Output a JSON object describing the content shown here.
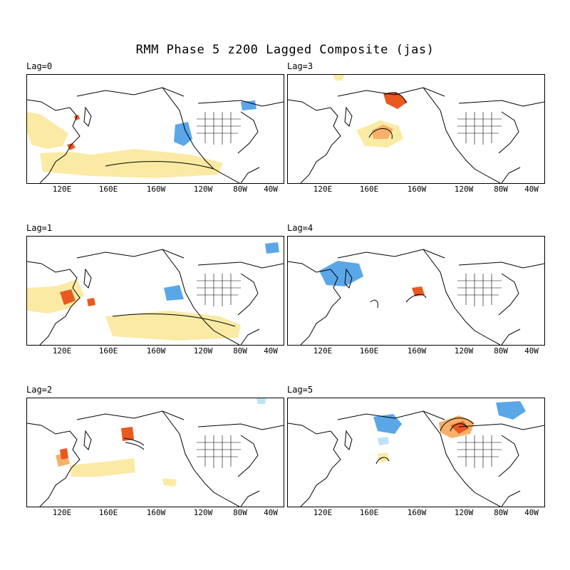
{
  "title": "RMM Phase 5 z200 Lagged Composite (jas)",
  "x_tick_labels": [
    "120E",
    "160E",
    "160W",
    "120W",
    "80W",
    "40W"
  ],
  "colors": {
    "light_positive": "#fbeaa4",
    "medium_positive": "#f6b06a",
    "strong_positive": "#ea5a1f",
    "light_negative": "#bfe3f6",
    "medium_negative": "#5aa7e8",
    "land": "#000000"
  },
  "panels": [
    {
      "label": "Lag=0"
    },
    {
      "label": "Lag=3"
    },
    {
      "label": "Lag=1"
    },
    {
      "label": "Lag=4"
    },
    {
      "label": "Lag=2"
    },
    {
      "label": "Lag=5"
    }
  ]
}
